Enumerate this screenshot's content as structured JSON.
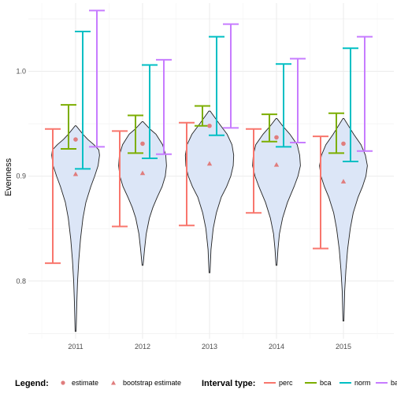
{
  "chart_data": {
    "type": "violin-interval",
    "title": "",
    "xlabel": "",
    "ylabel": "Evenness",
    "categories": [
      "2011",
      "2012",
      "2013",
      "2014",
      "2015"
    ],
    "ylim": [
      0.745,
      1.065
    ],
    "y_ticks": [
      0.8,
      0.9,
      1.0
    ],
    "y_tick_labels": [
      "0.8",
      "0.9",
      "1.0"
    ],
    "grid": true,
    "violin_fill": "#dce6f7",
    "violins": [
      {
        "category": "2011",
        "min": 0.752,
        "max": 0.948,
        "profile": [
          [
            0.752,
            0.02
          ],
          [
            0.78,
            0.05
          ],
          [
            0.8,
            0.08
          ],
          [
            0.82,
            0.13
          ],
          [
            0.84,
            0.2
          ],
          [
            0.86,
            0.3
          ],
          [
            0.875,
            0.42
          ],
          [
            0.89,
            0.62
          ],
          [
            0.9,
            0.78
          ],
          [
            0.91,
            0.92
          ],
          [
            0.92,
            0.98
          ],
          [
            0.925,
            0.95
          ],
          [
            0.93,
            0.75
          ],
          [
            0.935,
            0.5
          ],
          [
            0.94,
            0.3
          ],
          [
            0.948,
            0.02
          ]
        ]
      },
      {
        "category": "2012",
        "min": 0.815,
        "max": 0.952,
        "profile": [
          [
            0.815,
            0.02
          ],
          [
            0.83,
            0.08
          ],
          [
            0.845,
            0.15
          ],
          [
            0.86,
            0.28
          ],
          [
            0.87,
            0.42
          ],
          [
            0.88,
            0.6
          ],
          [
            0.89,
            0.8
          ],
          [
            0.9,
            0.93
          ],
          [
            0.91,
            0.98
          ],
          [
            0.92,
            0.95
          ],
          [
            0.93,
            0.82
          ],
          [
            0.94,
            0.55
          ],
          [
            0.945,
            0.3
          ],
          [
            0.952,
            0.02
          ]
        ]
      },
      {
        "category": "2013",
        "min": 0.808,
        "max": 0.962,
        "profile": [
          [
            0.808,
            0.02
          ],
          [
            0.83,
            0.06
          ],
          [
            0.85,
            0.15
          ],
          [
            0.865,
            0.28
          ],
          [
            0.88,
            0.48
          ],
          [
            0.89,
            0.7
          ],
          [
            0.9,
            0.87
          ],
          [
            0.91,
            0.97
          ],
          [
            0.92,
            0.99
          ],
          [
            0.93,
            0.92
          ],
          [
            0.94,
            0.72
          ],
          [
            0.95,
            0.4
          ],
          [
            0.962,
            0.03
          ]
        ]
      },
      {
        "category": "2014",
        "min": 0.815,
        "max": 0.955,
        "profile": [
          [
            0.815,
            0.02
          ],
          [
            0.83,
            0.06
          ],
          [
            0.845,
            0.12
          ],
          [
            0.86,
            0.25
          ],
          [
            0.875,
            0.45
          ],
          [
            0.89,
            0.72
          ],
          [
            0.9,
            0.88
          ],
          [
            0.91,
            0.98
          ],
          [
            0.92,
            0.95
          ],
          [
            0.93,
            0.85
          ],
          [
            0.94,
            0.55
          ],
          [
            0.948,
            0.25
          ],
          [
            0.955,
            0.02
          ]
        ]
      },
      {
        "category": "2015",
        "min": 0.762,
        "max": 0.955,
        "profile": [
          [
            0.762,
            0.02
          ],
          [
            0.79,
            0.05
          ],
          [
            0.81,
            0.1
          ],
          [
            0.83,
            0.17
          ],
          [
            0.85,
            0.28
          ],
          [
            0.865,
            0.4
          ],
          [
            0.88,
            0.6
          ],
          [
            0.89,
            0.78
          ],
          [
            0.9,
            0.92
          ],
          [
            0.91,
            0.98
          ],
          [
            0.92,
            0.9
          ],
          [
            0.93,
            0.72
          ],
          [
            0.94,
            0.42
          ],
          [
            0.955,
            0.02
          ]
        ]
      }
    ],
    "estimate": [
      0.935,
      0.931,
      0.948,
      0.937,
      0.931
    ],
    "bootstrap_estimate": [
      0.902,
      0.903,
      0.912,
      0.911,
      0.895
    ],
    "intervals": [
      {
        "type": "perc",
        "color": "#F8766D",
        "lower": [
          0.817,
          0.852,
          0.853,
          0.865,
          0.831
        ],
        "upper": [
          0.945,
          0.943,
          0.951,
          0.945,
          0.938
        ]
      },
      {
        "type": "bca",
        "color": "#7CAE00",
        "lower": [
          0.926,
          0.922,
          0.948,
          0.933,
          0.922
        ],
        "upper": [
          0.968,
          0.958,
          0.967,
          0.959,
          0.96
        ]
      },
      {
        "type": "norm",
        "color": "#00BFC4",
        "lower": [
          0.907,
          0.917,
          0.939,
          0.928,
          0.914
        ],
        "upper": [
          1.038,
          1.006,
          1.033,
          1.007,
          1.022
        ]
      },
      {
        "type": "ba",
        "color": "#C77CFF",
        "lower": [
          0.928,
          0.921,
          0.946,
          0.932,
          0.924
        ],
        "upper": [
          1.058,
          1.011,
          1.045,
          1.012,
          1.033
        ]
      }
    ],
    "legend": {
      "position": "bottom",
      "title": "Legend:",
      "estimate_label": "estimate",
      "bootstrap_label": "bootstrap estimate",
      "interval_title": "Interval type:",
      "point_color": "#e07d7d"
    }
  }
}
